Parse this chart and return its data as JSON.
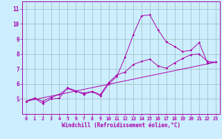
{
  "xlabel": "Windchill (Refroidissement éolien,°C)",
  "background_color": "#cceeff",
  "line_color": "#aa00aa",
  "grid_color": "#99bbbb",
  "xlim": [
    -0.5,
    23.5
  ],
  "ylim": [
    4.0,
    11.5
  ],
  "yticks": [
    5,
    6,
    7,
    8,
    9,
    10,
    11
  ],
  "xticks": [
    0,
    1,
    2,
    3,
    4,
    5,
    6,
    7,
    8,
    9,
    10,
    11,
    12,
    13,
    14,
    15,
    16,
    17,
    18,
    19,
    20,
    21,
    22,
    23
  ],
  "line1_x": [
    0,
    1,
    2,
    3,
    4,
    5,
    6,
    7,
    8,
    9,
    10,
    11,
    12,
    13,
    14,
    15,
    16,
    17,
    18,
    19,
    20,
    21,
    22,
    23
  ],
  "line1_y": [
    4.85,
    5.05,
    4.7,
    5.0,
    5.05,
    5.75,
    5.55,
    5.3,
    5.5,
    5.2,
    6.0,
    6.5,
    7.8,
    9.3,
    10.55,
    10.6,
    9.6,
    8.8,
    8.5,
    8.15,
    8.25,
    8.75,
    7.4,
    7.45
  ],
  "line2_x": [
    0,
    1,
    2,
    3,
    4,
    5,
    6,
    7,
    8,
    9,
    10,
    11,
    12,
    13,
    14,
    15,
    16,
    17,
    18,
    19,
    20,
    21,
    22,
    23
  ],
  "line2_y": [
    4.85,
    5.05,
    4.85,
    5.1,
    5.3,
    5.7,
    5.5,
    5.4,
    5.5,
    5.3,
    6.1,
    6.6,
    6.8,
    7.3,
    7.5,
    7.65,
    7.2,
    7.05,
    7.4,
    7.7,
    7.95,
    8.0,
    7.5,
    7.45
  ],
  "line3_x": [
    0,
    23
  ],
  "line3_y": [
    4.85,
    7.45
  ]
}
